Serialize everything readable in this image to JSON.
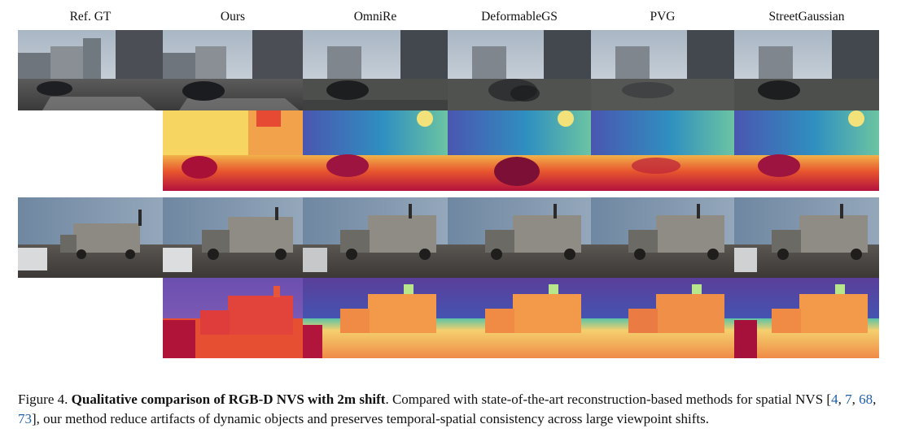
{
  "columns": [
    "Ref. GT",
    "Ours",
    "OmniRe",
    "DeformableGS",
    "PVG",
    "StreetGaussian"
  ],
  "caption": {
    "label": "Figure 4.",
    "title": "Qualitative comparison of RGB-D NVS with 2m shift",
    "text_a": ". Compared with state-of-the-art reconstruction-based methods for spatial NVS [",
    "refs": [
      "4",
      "7",
      "68",
      "73"
    ],
    "text_b": "], our method reduce artifacts of dynamic objects and preserves temporal-spatial consistency across large viewpoint shifts."
  },
  "colors": {
    "reference_link": "#1f5fa8"
  }
}
